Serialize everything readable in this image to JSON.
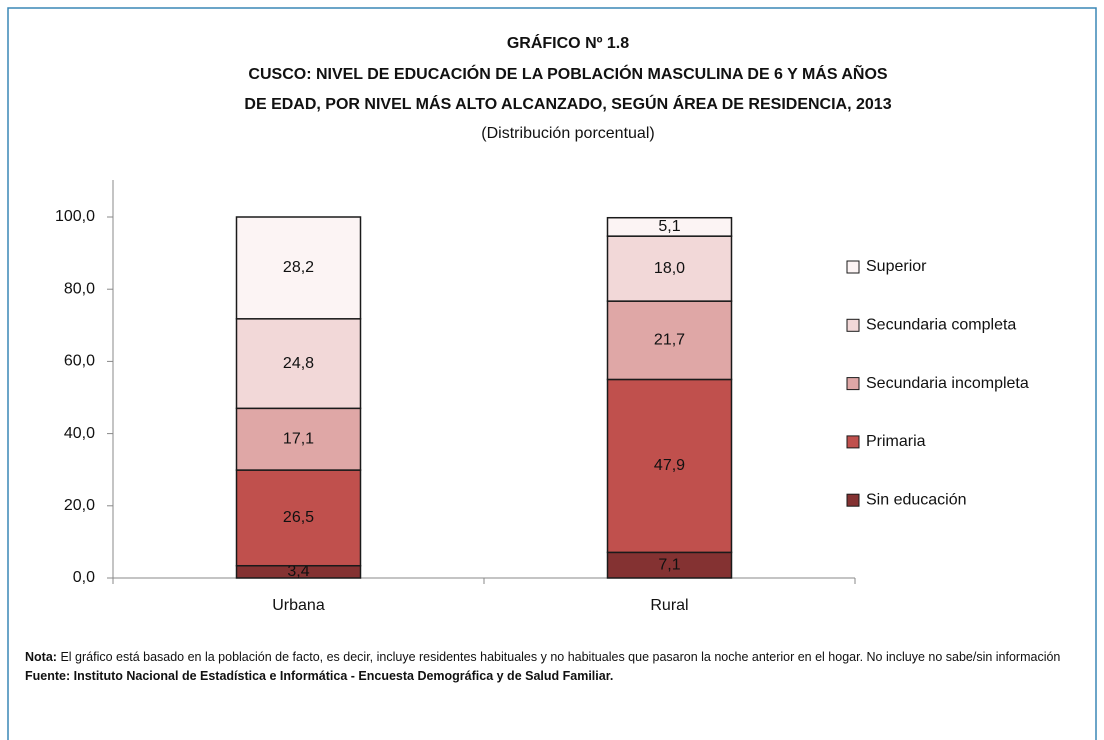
{
  "chart_data": {
    "type": "stacked_bar",
    "title": "GRÁFICO Nº 1.8",
    "title_lines": [
      "CUSCO: NIVEL DE EDUCACIÓN DE LA POBLACIÓN MASCULINA DE 6 Y MÁS AÑOS",
      "DE EDAD, POR NIVEL MÁS ALTO ALCANZADO, SEGÚN ÁREA DE RESIDENCIA, 2013"
    ],
    "subtitle": "(Distribución porcentual)",
    "categories": [
      "Urbana",
      "Rural"
    ],
    "series": [
      {
        "name": "Sin educación",
        "color": "#843232",
        "values": [
          3.4,
          7.1
        ],
        "value_labels": [
          "3,4",
          "7,1"
        ]
      },
      {
        "name": "Primaria",
        "color": "#c0504d",
        "values": [
          26.5,
          47.9
        ],
        "value_labels": [
          "26,5",
          "47,9"
        ]
      },
      {
        "name": "Secundaria incompleta",
        "color": "#dfa7a6",
        "values": [
          17.1,
          21.7
        ],
        "value_labels": [
          "17,1",
          "21,7"
        ]
      },
      {
        "name": "Secundaria completa",
        "color": "#f2d8d8",
        "values": [
          24.8,
          18.0
        ],
        "value_labels": [
          "24,8",
          "18,0"
        ]
      },
      {
        "name": "Superior",
        "color": "#fcf4f4",
        "values": [
          28.2,
          5.1
        ],
        "value_labels": [
          "28,2",
          "5,1"
        ]
      }
    ],
    "ylim": [
      0,
      100
    ],
    "yticks": [
      {
        "value": 0,
        "label": "0,0"
      },
      {
        "value": 20,
        "label": "20,0"
      },
      {
        "value": 40,
        "label": "40,0"
      },
      {
        "value": 60,
        "label": "60,0"
      },
      {
        "value": 80,
        "label": "80,0"
      },
      {
        "value": 100,
        "label": "100,0"
      }
    ],
    "legend": "right",
    "note": {
      "label": "Nota:",
      "text": "El gráfico está basado en la población de facto, es decir, incluye residentes habituales y no habituales que pasaron la noche anterior en el hogar. No incluye no sabe/sin información"
    },
    "source": "Fuente: Instituto Nacional de Estadística e Informática - Encuesta Demográfica y de Salud Familiar."
  }
}
